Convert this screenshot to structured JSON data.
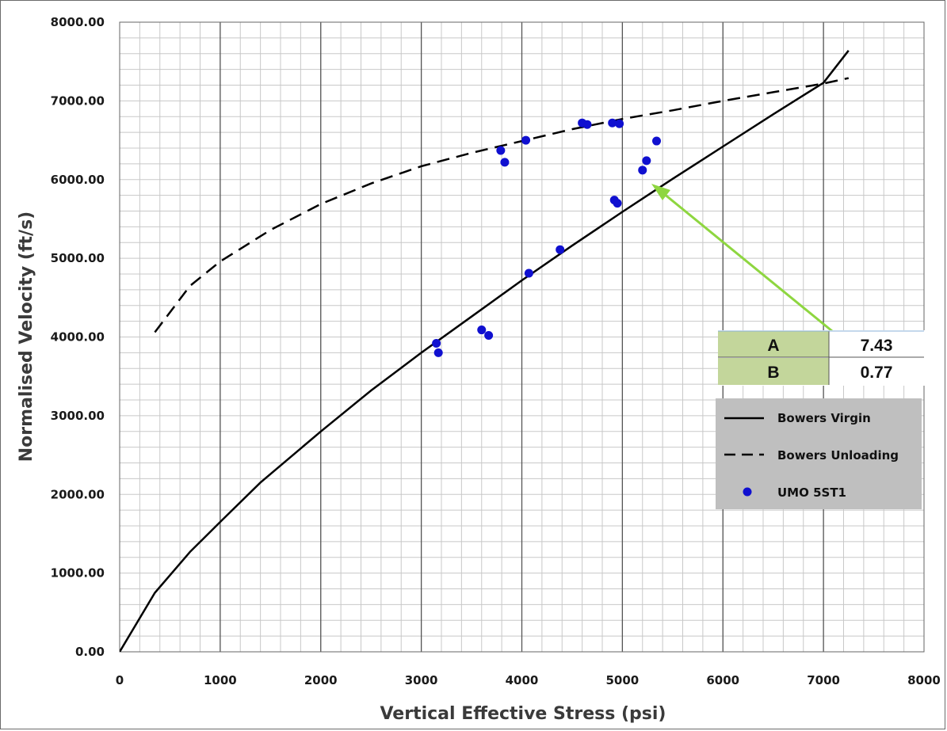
{
  "chart_data": {
    "type": "scatter",
    "xlabel": "Vertical Effective Stress (psi)",
    "ylabel": "Normalised Velocity (ft/s)",
    "xlim": [
      0,
      8000
    ],
    "ylim": [
      0,
      8000
    ],
    "x_ticks": [
      "0",
      "1000",
      "2000",
      "3000",
      "4000",
      "5000",
      "6000",
      "7000",
      "8000"
    ],
    "y_ticks": [
      "0.00",
      "1000.00",
      "2000.00",
      "3000.00",
      "4000.00",
      "5000.00",
      "6000.00",
      "7000.00",
      "8000.00"
    ],
    "grid": true,
    "legend_position": "right",
    "parameters": [
      {
        "name": "A",
        "value": "7.43"
      },
      {
        "name": "B",
        "value": "0.77"
      }
    ],
    "series": [
      {
        "name": "Bowers Virgin",
        "style": "solid",
        "color": "#000000",
        "x": [
          0,
          350,
          700,
          1000,
          1400,
          2000,
          2500,
          3000,
          3500,
          4000,
          4500,
          5000,
          5500,
          6000,
          6500,
          7000,
          7250
        ],
        "y": [
          0,
          750,
          1270,
          1650,
          2150,
          2800,
          3320,
          3800,
          4260,
          4720,
          5160,
          5590,
          6010,
          6420,
          6830,
          7230,
          7640
        ]
      },
      {
        "name": "Bowers Unloading",
        "style": "dashed",
        "color": "#000000",
        "x": [
          350,
          700,
          1000,
          1500,
          2000,
          2500,
          3000,
          3500,
          4000,
          4500,
          5000,
          5500,
          6000,
          6500,
          7000,
          7250
        ],
        "y": [
          4060,
          4650,
          4960,
          5360,
          5690,
          5950,
          6170,
          6340,
          6490,
          6640,
          6770,
          6880,
          7000,
          7110,
          7220,
          7290
        ]
      },
      {
        "name": "UMO 5ST1",
        "style": "marker",
        "color": "#1010d0",
        "x": [
          3150,
          3170,
          3600,
          3670,
          3790,
          3830,
          4040,
          4070,
          4380,
          4600,
          4650,
          4900,
          4920,
          4950,
          4970,
          5200,
          5240,
          5340
        ],
        "y": [
          3920,
          3800,
          4090,
          4020,
          6370,
          6220,
          6500,
          4810,
          5110,
          6720,
          6700,
          6720,
          5740,
          5700,
          6710,
          6120,
          6240,
          6490
        ]
      }
    ],
    "colors": {
      "param_label_bg": "#c3d69b",
      "legend_bg": "#bfbfbf",
      "arrow": "#8ed640",
      "grid_minor": "#c8c8c8",
      "grid_major": "#555555"
    }
  }
}
